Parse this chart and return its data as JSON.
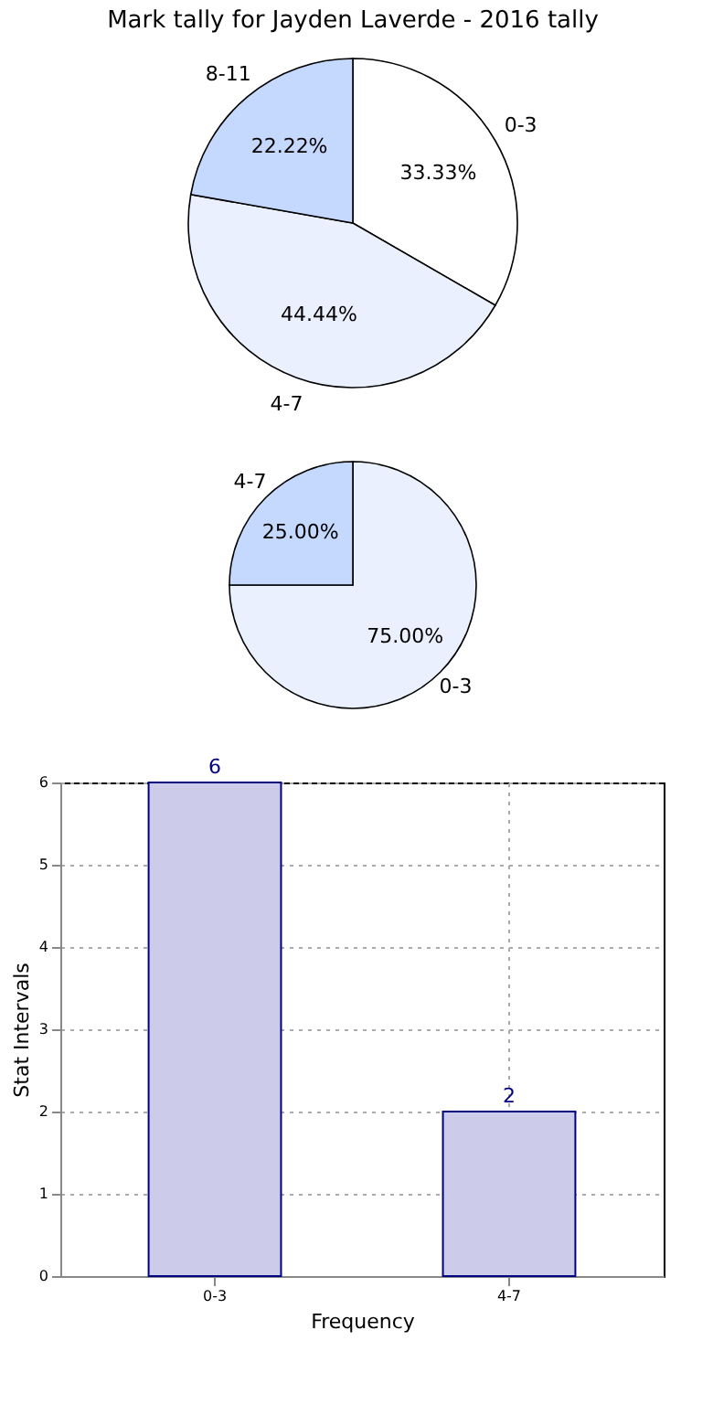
{
  "chart_data": [
    {
      "type": "pie",
      "title": "Mark tally for Jayden Laverde - 2016 tally",
      "categories": [
        "0-3",
        "4-7",
        "8-11"
      ],
      "values": [
        33.33,
        44.44,
        22.22
      ],
      "colors": [
        "#ffffff",
        "#eaf0fd",
        "#c5d8fd"
      ],
      "value_labels": [
        "33.33%",
        "44.44%",
        "22.22%"
      ]
    },
    {
      "type": "pie",
      "categories": [
        "0-3",
        "4-7"
      ],
      "values": [
        75.0,
        25.0
      ],
      "colors": [
        "#eaf0fd",
        "#c5d8fd"
      ],
      "value_labels": [
        "75.00%",
        "25.00%"
      ]
    },
    {
      "type": "bar",
      "categories": [
        "0-3",
        "4-7"
      ],
      "values": [
        6,
        2
      ],
      "color": "#ccccea",
      "xlabel": "Frequency",
      "ylabel": "Stat Intervals",
      "ylim": [
        0,
        6
      ],
      "yticks": [
        0,
        1,
        2,
        3,
        4,
        5,
        6
      ],
      "grid": true,
      "data_labels": true
    }
  ]
}
